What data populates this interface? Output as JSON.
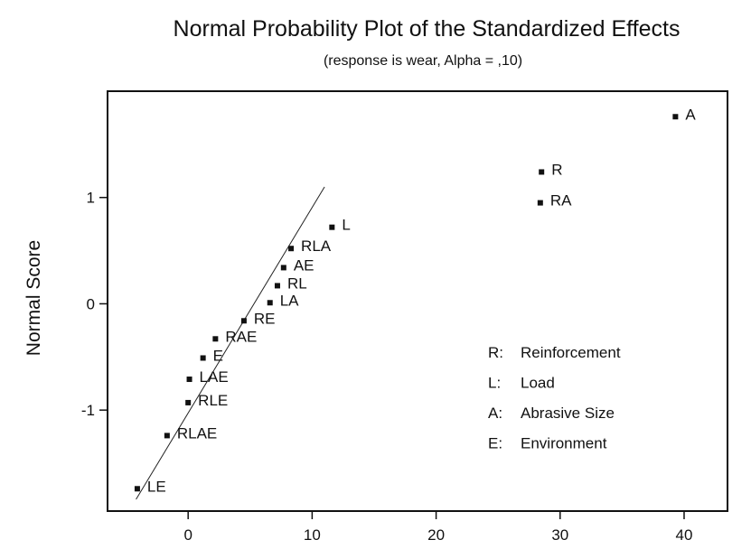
{
  "chart_data": {
    "type": "scatter",
    "title": "Normal Probability Plot of the Standardized Effects",
    "subtitle": "(response is wear, Alpha = ,10)",
    "xlabel": "",
    "ylabel": "Normal Score",
    "xlim": [
      -6.5,
      43.5
    ],
    "ylim": [
      -1.95,
      2.0
    ],
    "x_ticks": [
      0,
      10,
      20,
      30,
      40
    ],
    "x_tick_labels": [
      "0",
      "10",
      "20",
      "30",
      "40"
    ],
    "y_ticks": [
      -1,
      0,
      1
    ],
    "y_tick_labels": [
      "-1",
      "0",
      "1"
    ],
    "grid": false,
    "points": [
      {
        "label": "A",
        "x": 39.3,
        "y": 1.76
      },
      {
        "label": "R",
        "x": 28.5,
        "y": 1.24
      },
      {
        "label": "RA",
        "x": 28.4,
        "y": 0.95
      },
      {
        "label": "L",
        "x": 11.6,
        "y": 0.72
      },
      {
        "label": "RLA",
        "x": 8.3,
        "y": 0.52
      },
      {
        "label": "AE",
        "x": 7.7,
        "y": 0.34
      },
      {
        "label": "RL",
        "x": 7.2,
        "y": 0.17
      },
      {
        "label": "LA",
        "x": 6.6,
        "y": 0.01
      },
      {
        "label": "RE",
        "x": 4.5,
        "y": -0.16
      },
      {
        "label": "RAE",
        "x": 2.2,
        "y": -0.33
      },
      {
        "label": "E",
        "x": 1.2,
        "y": -0.51
      },
      {
        "label": "LAE",
        "x": 0.1,
        "y": -0.71
      },
      {
        "label": "RLE",
        "x": 0.0,
        "y": -0.93
      },
      {
        "label": "RLAE",
        "x": -1.7,
        "y": -1.24
      },
      {
        "label": "LE",
        "x": -4.1,
        "y": -1.74
      }
    ],
    "fit_line": {
      "x": [
        -4.2,
        11.0
      ],
      "y": [
        -1.84,
        1.1
      ]
    },
    "legend": {
      "placement": "bottom-right",
      "entries": [
        {
          "key": "R:",
          "text": "Reinforcement"
        },
        {
          "key": "L:",
          "text": "Load"
        },
        {
          "key": "A:",
          "text": "Abrasive Size"
        },
        {
          "key": "E:",
          "text": "Environment"
        }
      ]
    }
  }
}
